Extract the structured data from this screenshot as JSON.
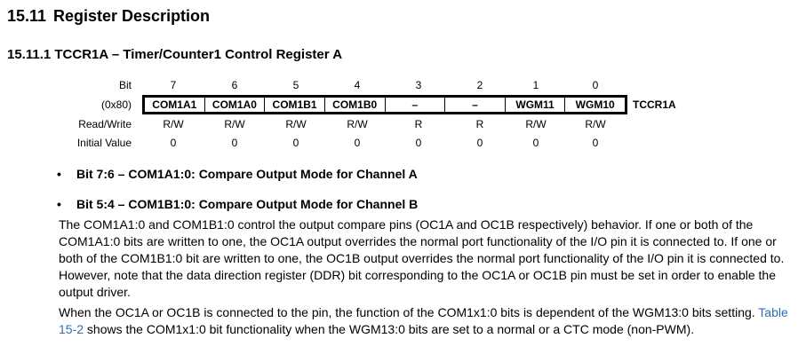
{
  "section": {
    "number": "15.11",
    "title": "Register Description"
  },
  "subsection": {
    "title": "15.11.1 TCCR1A – Timer/Counter1 Control Register A"
  },
  "register": {
    "row_labels": {
      "bit": "Bit",
      "address": "(0x80)",
      "access": "Read/Write",
      "initial": "Initial Value"
    },
    "bits": [
      "7",
      "6",
      "5",
      "4",
      "3",
      "2",
      "1",
      "0"
    ],
    "fields": [
      "COM1A1",
      "COM1A0",
      "COM1B1",
      "COM1B0",
      "–",
      "–",
      "WGM11",
      "WGM10"
    ],
    "access": [
      "R/W",
      "R/W",
      "R/W",
      "R/W",
      "R",
      "R",
      "R/W",
      "R/W"
    ],
    "initial": [
      "0",
      "0",
      "0",
      "0",
      "0",
      "0",
      "0",
      "0"
    ],
    "name": "TCCR1A"
  },
  "bullets": [
    {
      "text": "Bit 7:6 – COM1A1:0: Compare Output Mode for Channel A"
    },
    {
      "text": "Bit 5:4 – COM1B1:0: Compare Output Mode for Channel B"
    }
  ],
  "paragraph1": "The COM1A1:0 and COM1B1:0 control the output compare pins (OC1A and OC1B respectively) behavior. If one or both of the COM1A1:0 bits are written to one, the OC1A output overrides the normal port functionality of the I/O pin it is connected to. If one or both of the COM1B1:0 bit are written to one, the OC1B output overrides the normal port functionality of the I/O pin it is connected to. However, note that the data direction register (DDR) bit corresponding to the OC1A or OC1B pin must be set in order to enable the output driver.",
  "paragraph2": {
    "before": "When the OC1A or OC1B is connected to the pin, the function of the COM1x1:0 bits is dependent of the WGM13:0 bits setting. ",
    "link": "Table 15-2",
    "after": " shows the COM1x1:0 bit functionality when the WGM13:0 bits are set to a normal or a CTC mode (non-PWM)."
  },
  "colors": {
    "link": "#2f6eb5",
    "text": "#000000"
  }
}
